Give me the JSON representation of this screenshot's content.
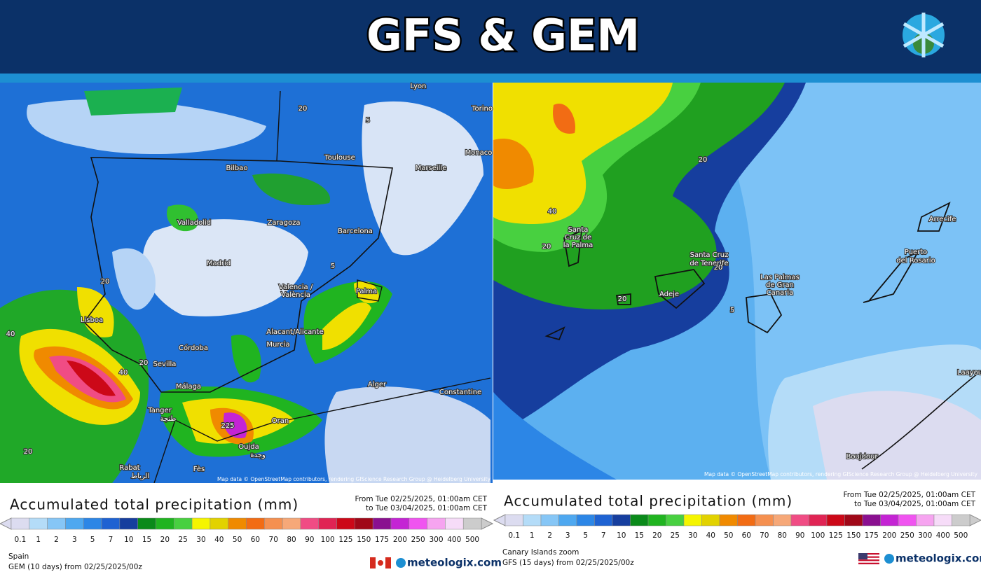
{
  "header": {
    "title": "GFS & GEM"
  },
  "panels": [
    {
      "map": {
        "labels": [
          "Lyon",
          "Torino",
          "Monaco",
          "Toulouse",
          "Marseille",
          "Bilbao",
          "Valladolid",
          "Zaragoza",
          "Barcelona",
          "Madrid",
          "Valencia /",
          "València",
          "Palma",
          "Lisboa",
          "Alacant/Alicante",
          "Murcia",
          "Córdoba",
          "Sevilla",
          "Málaga",
          "Alger",
          "Constantine",
          "Tanger",
          "طنجة",
          "Oran",
          "225",
          "Oujda",
          "وجدة",
          "Rabat",
          "الرباط",
          "Fès",
          "20",
          "5",
          "40",
          "20",
          "5",
          "20",
          "40",
          "20"
        ],
        "attribution": "Map data © OpenStreetMap contributors, rendering GIScience Research Group @ Heidelberg University"
      },
      "legend": {
        "title": "Accumulated total precipitation (mm)",
        "period": [
          "From Tue 02/25/2025, 01:00am CET",
          "to Tue 03/04/2025, 01:00am CET"
        ],
        "ticks": [
          0.1,
          1,
          2,
          3,
          5,
          7,
          10,
          15,
          20,
          25,
          30,
          40,
          50,
          60,
          70,
          80,
          90,
          100,
          125,
          150,
          175,
          200,
          250,
          300,
          400,
          500
        ],
        "colors": [
          "#dcdcf0",
          "#b4dcf8",
          "#86c6f6",
          "#4ea8f0",
          "#2c86e6",
          "#1e62d2",
          "#163e9e",
          "#0a8a1a",
          "#20b420",
          "#48d040",
          "#f5f500",
          "#e2d200",
          "#f08a00",
          "#f26c14",
          "#f59050",
          "#f6a878",
          "#f04c84",
          "#e02454",
          "#cc0818",
          "#a00818",
          "#8a1090",
          "#c424d4",
          "#f054f0",
          "#f6a4f0",
          "#f6dcf8",
          "#cccccc"
        ]
      },
      "region": "Spain",
      "run": "GEM (10 days) from 02/25/2025/00z",
      "brand": "meteologix.com"
    },
    {
      "map": {
        "labels": [
          "40",
          "Santa",
          "Cruz de",
          "la Palma",
          "20",
          "Santa Cruz",
          "de Tenerife",
          "20",
          "Adeje",
          "20",
          "5",
          "Las Palmas",
          "de Gran",
          "Canaria",
          "Puerto",
          "del Rosario",
          "Arrecife",
          "20",
          "Laayou",
          "Boujdour"
        ],
        "attribution": "Map data © OpenStreetMap contributors, rendering GIScience Research Group @ Heidelberg University"
      },
      "legend": {
        "title": "Accumulated total precipitation (mm)",
        "period": [
          "From Tue 02/25/2025, 01:00am CET",
          "to Tue 03/04/2025, 01:00am CET"
        ],
        "ticks": [
          0.1,
          1,
          2,
          3,
          5,
          7,
          10,
          15,
          20,
          25,
          30,
          40,
          50,
          60,
          70,
          80,
          90,
          100,
          125,
          150,
          175,
          200,
          250,
          300,
          400,
          500
        ],
        "colors": [
          "#dcdcf0",
          "#b4dcf8",
          "#86c6f6",
          "#4ea8f0",
          "#2c86e6",
          "#1e62d2",
          "#163e9e",
          "#0a8a1a",
          "#20b420",
          "#48d040",
          "#f5f500",
          "#e2d200",
          "#f08a00",
          "#f26c14",
          "#f59050",
          "#f6a878",
          "#f04c84",
          "#e02454",
          "#cc0818",
          "#a00818",
          "#8a1090",
          "#c424d4",
          "#f054f0",
          "#f6a4f0",
          "#f6dcf8",
          "#cccccc"
        ]
      },
      "region": "Canary Islands zoom",
      "run": "GFS (15 days) from 02/25/2025/00z",
      "brand": "meteologix.com"
    }
  ]
}
